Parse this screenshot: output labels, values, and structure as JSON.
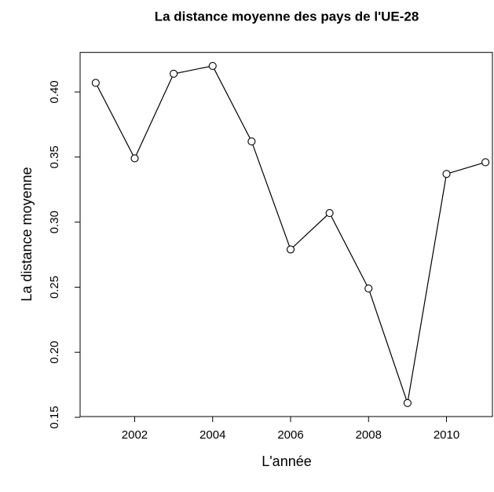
{
  "chart_data": {
    "type": "line",
    "title": "La distance moyenne des pays de l'UE-28",
    "x_label": "L'année",
    "y_label": "La distance moyenne",
    "x": [
      2001,
      2002,
      2003,
      2004,
      2005,
      2006,
      2007,
      2008,
      2009,
      2010,
      2011
    ],
    "series": [
      {
        "name": "La distance moyenne",
        "color": "#000000",
        "values": [
          0.407,
          0.349,
          0.414,
          0.42,
          0.362,
          0.279,
          0.307,
          0.249,
          0.161,
          0.337,
          0.346
        ]
      }
    ],
    "xlim": [
      2000.6,
      2011.4
    ],
    "xticks": [
      2002,
      2004,
      2006,
      2008,
      2010
    ],
    "ylim": [
      0.1506,
      0.4304
    ],
    "yticks": [
      {
        "value": 0.15,
        "label": "0.15"
      },
      {
        "value": 0.2,
        "label": "0.20"
      },
      {
        "value": 0.25,
        "label": "0.25"
      },
      {
        "value": 0.3,
        "label": "0.30"
      },
      {
        "value": 0.35,
        "label": "0.35"
      },
      {
        "value": 0.4,
        "label": "0.40"
      }
    ],
    "markers": "open-circle"
  }
}
